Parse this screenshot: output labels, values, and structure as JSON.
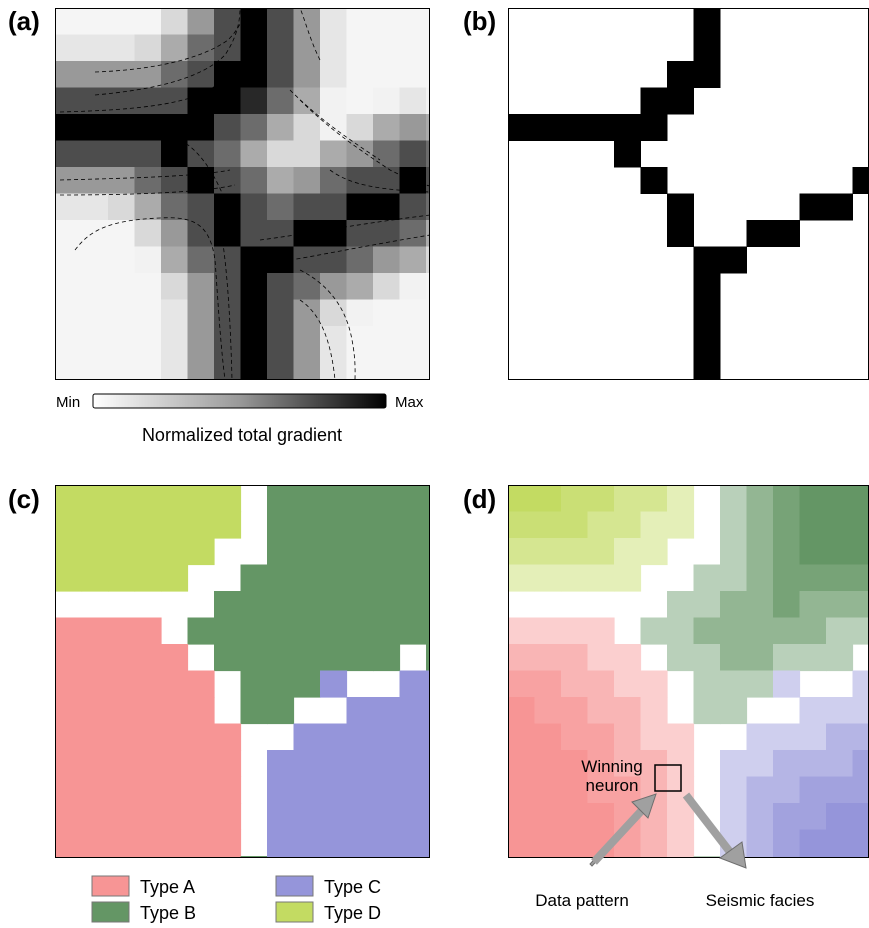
{
  "figure": {
    "panels": [
      {
        "id": "a",
        "label": "(a)"
      },
      {
        "id": "b",
        "label": "(b)"
      },
      {
        "id": "c",
        "label": "(c)"
      },
      {
        "id": "d",
        "label": "(d)"
      }
    ],
    "colorbar": {
      "min_label": "Min",
      "max_label": "Max",
      "title": "Normalized total gradient"
    },
    "legend": {
      "items": [
        {
          "label": "Type A",
          "color": "#f79595"
        },
        {
          "label": "Type B",
          "color": "#649665"
        },
        {
          "label": "Type C",
          "color": "#9595da"
        },
        {
          "label": "Type D",
          "color": "#c3db62"
        }
      ]
    },
    "annotations": {
      "winning_neuron_line1": "Winning",
      "winning_neuron_line2": "neuron",
      "data_pattern": "Data pattern",
      "seismic_facies": "Seismic facies"
    },
    "colors": {
      "boundary": "#000000",
      "background": "#ffffff",
      "arrow": "#a0a0a0"
    }
  }
}
